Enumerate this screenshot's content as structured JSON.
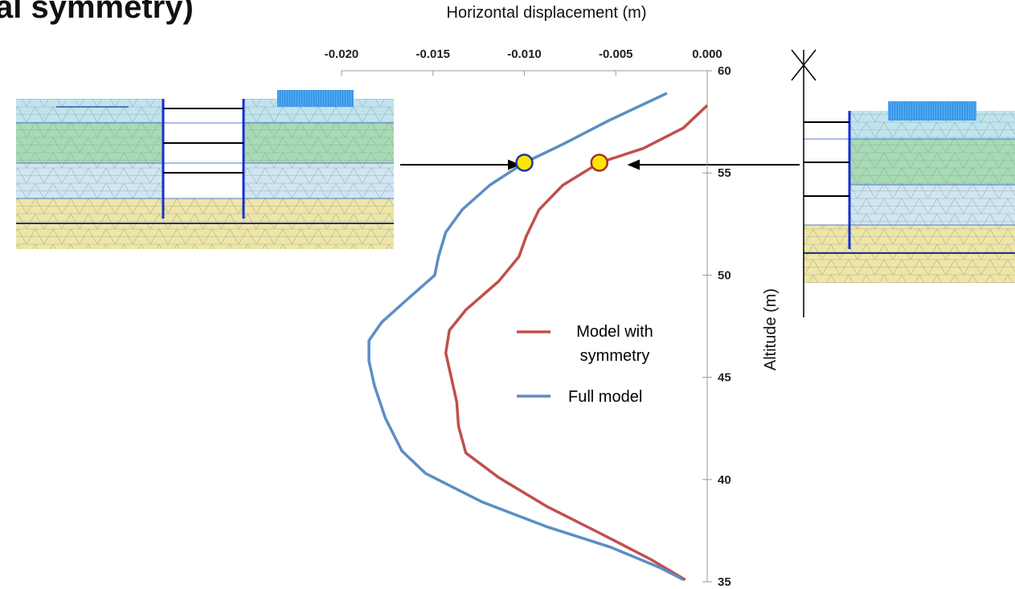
{
  "chart_data": {
    "type": "line",
    "title": "al symmetry)",
    "x_label": "Horizontal displacement (m)",
    "y_label": "Altitude (m)",
    "xlim": [
      -0.02,
      0.0
    ],
    "xticks": [
      {
        "value": -0.02,
        "label": "-0.020"
      },
      {
        "value": -0.015,
        "label": "-0.015"
      },
      {
        "value": -0.01,
        "label": "-0.010"
      },
      {
        "value": -0.005,
        "label": "-0.005"
      },
      {
        "value": 0.0,
        "label": "0.000"
      }
    ],
    "ylim": [
      35,
      60
    ],
    "yticks": [
      35,
      40,
      45,
      50,
      55,
      60
    ],
    "series": [
      {
        "name": "Model with symmetry",
        "color": "#c0504d",
        "x": [
          0.0,
          -0.0013,
          -0.0035,
          -0.0059,
          -0.0079,
          -0.0092,
          -0.0099,
          -0.0103,
          -0.0114,
          -0.0132,
          -0.0141,
          -0.0143,
          -0.014,
          -0.0137,
          -0.0136,
          -0.0132,
          -0.0114,
          -0.0088,
          -0.0057,
          -0.0031,
          -0.0012
        ],
        "values": [
          58.3,
          57.2,
          56.2,
          55.5,
          54.4,
          53.2,
          51.9,
          50.9,
          49.7,
          48.3,
          47.3,
          46.2,
          45.0,
          43.8,
          42.6,
          41.3,
          40.1,
          38.7,
          37.3,
          36.1,
          35.1
        ],
        "highlight": {
          "x": -0.0059,
          "y": 55.5
        }
      },
      {
        "name": "Full model",
        "color": "#5b8ec4",
        "x": [
          -0.0022,
          -0.0053,
          -0.0079,
          -0.01,
          -0.0119,
          -0.0134,
          -0.0143,
          -0.0147,
          -0.0149,
          -0.0163,
          -0.0178,
          -0.0185,
          -0.0185,
          -0.0182,
          -0.0176,
          -0.0167,
          -0.0154,
          -0.0123,
          -0.0088,
          -0.0053,
          -0.0026,
          -0.0013
        ],
        "values": [
          58.9,
          57.6,
          56.4,
          55.5,
          54.4,
          53.2,
          52.1,
          50.9,
          50.0,
          48.9,
          47.7,
          46.8,
          45.8,
          44.6,
          43.0,
          41.4,
          40.3,
          38.9,
          37.7,
          36.7,
          35.7,
          35.1
        ],
        "highlight": {
          "x": -0.01,
          "y": 55.5
        }
      }
    ]
  }
}
